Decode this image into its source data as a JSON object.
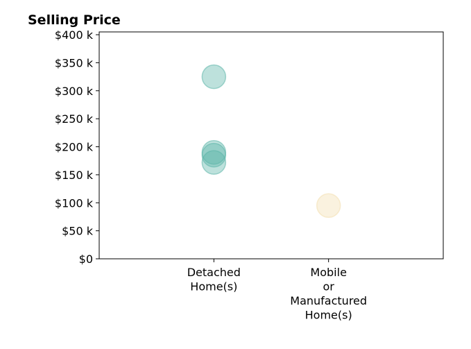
{
  "chart_data": {
    "type": "scatter",
    "title": "Selling Price",
    "xlabel": "",
    "ylabel": "",
    "categories": [
      [
        "Detached",
        "Home(s)"
      ],
      [
        "Mobile",
        "or",
        "Manufactured",
        "Home(s)"
      ]
    ],
    "xlim": [
      -1,
      2
    ],
    "ylim": [
      0,
      405000
    ],
    "y_ticks": [
      0,
      50000,
      100000,
      150000,
      200000,
      250000,
      300000,
      350000,
      400000
    ],
    "y_tick_labels": [
      "$0",
      "$50 k",
      "$100 k",
      "$150 k",
      "$200 k",
      "$250 k",
      "$300 k",
      "$350 k",
      "$400 k"
    ],
    "grid": false,
    "series": [
      {
        "category_index": 0,
        "color": "#5bb5a8",
        "points": [
          {
            "x": 0,
            "y": 325000
          },
          {
            "x": 0,
            "y": 190000
          },
          {
            "x": 0,
            "y": 185000
          },
          {
            "x": 0,
            "y": 172000
          }
        ]
      },
      {
        "category_index": 1,
        "color": "#f3dfae",
        "points": [
          {
            "x": 1,
            "y": 95000
          }
        ]
      }
    ]
  }
}
